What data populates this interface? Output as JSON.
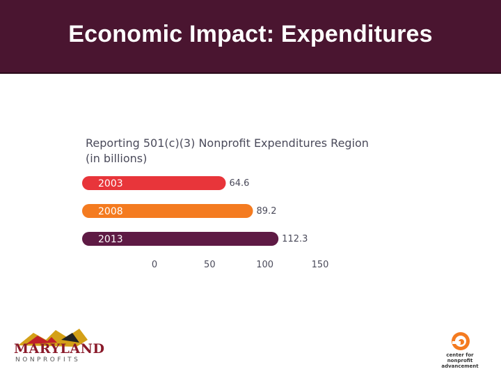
{
  "slide": {
    "title": "Economic Impact: Expenditures"
  },
  "chart_data": {
    "type": "bar",
    "orientation": "horizontal",
    "title_lines": [
      "Reporting 501(c)(3) Nonprofit Expenditures Region",
      "(in billions)"
    ],
    "categories": [
      "2003",
      "2008",
      "2013"
    ],
    "values": [
      64.6,
      89.2,
      112.3
    ],
    "value_labels": [
      "64.6",
      "89.2",
      "112.3"
    ],
    "xticks": [
      "0",
      "50",
      "100",
      "150"
    ],
    "xtick_values": [
      0,
      50,
      100,
      150
    ],
    "xlim": [
      0,
      150
    ],
    "grid": false,
    "colors": [
      "#e8353a",
      "#f47b20",
      "#5e1a44"
    ]
  },
  "logos": {
    "maryland_word": "MARYLAND",
    "maryland_sub": "NONPROFITS",
    "cna_text": "center for nonprofit advancement"
  }
}
